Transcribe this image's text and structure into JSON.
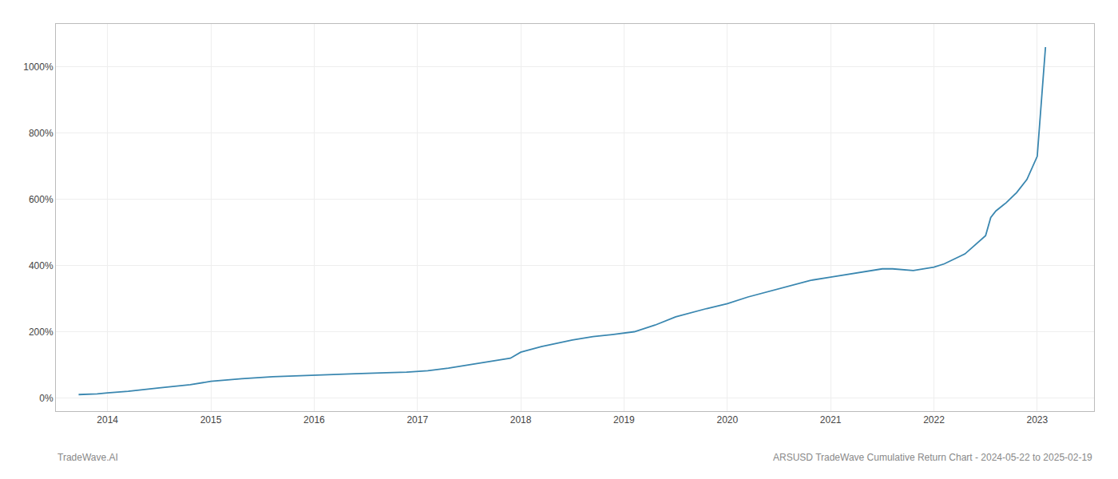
{
  "chart_data": {
    "type": "line",
    "title": "ARSUSD TradeWave Cumulative Return Chart - 2024-05-22 to 2025-02-19",
    "annotations": [
      "TradeWave.AI"
    ],
    "color": "#3a87b0",
    "grid": true,
    "x": [
      2013.72,
      2013.9,
      2014.0,
      2014.2,
      2014.5,
      2014.8,
      2015.0,
      2015.3,
      2015.6,
      2015.9,
      2016.1,
      2016.4,
      2016.7,
      2016.9,
      2017.1,
      2017.3,
      2017.6,
      2017.9,
      2018.0,
      2018.2,
      2018.5,
      2018.7,
      2018.9,
      2019.1,
      2019.3,
      2019.5,
      2019.8,
      2020.0,
      2020.2,
      2020.5,
      2020.8,
      2021.0,
      2021.2,
      2021.4,
      2021.5,
      2021.6,
      2021.8,
      2022.0,
      2022.1,
      2022.3,
      2022.5,
      2022.55,
      2022.6,
      2022.7,
      2022.8,
      2022.9,
      2023.0,
      2023.08
    ],
    "values": [
      10,
      12,
      15,
      20,
      30,
      40,
      50,
      58,
      64,
      68,
      70,
      73,
      76,
      78,
      82,
      90,
      105,
      120,
      138,
      155,
      175,
      185,
      192,
      200,
      220,
      245,
      270,
      285,
      305,
      330,
      355,
      365,
      375,
      385,
      390,
      390,
      385,
      395,
      405,
      435,
      490,
      545,
      565,
      590,
      620,
      660,
      730,
      1060
    ],
    "xlim": [
      2013.5,
      2023.55
    ],
    "xticks": [
      2014,
      2015,
      2016,
      2017,
      2018,
      2019,
      2020,
      2021,
      2022,
      2023
    ],
    "ylim": [
      -40,
      1130
    ],
    "yticks": [
      {
        "value": 0,
        "label": "0%"
      },
      {
        "value": 200,
        "label": "200%"
      },
      {
        "value": 400,
        "label": "400%"
      },
      {
        "value": 600,
        "label": "600%"
      },
      {
        "value": 800,
        "label": "800%"
      },
      {
        "value": 1000,
        "label": "1000%"
      }
    ]
  }
}
